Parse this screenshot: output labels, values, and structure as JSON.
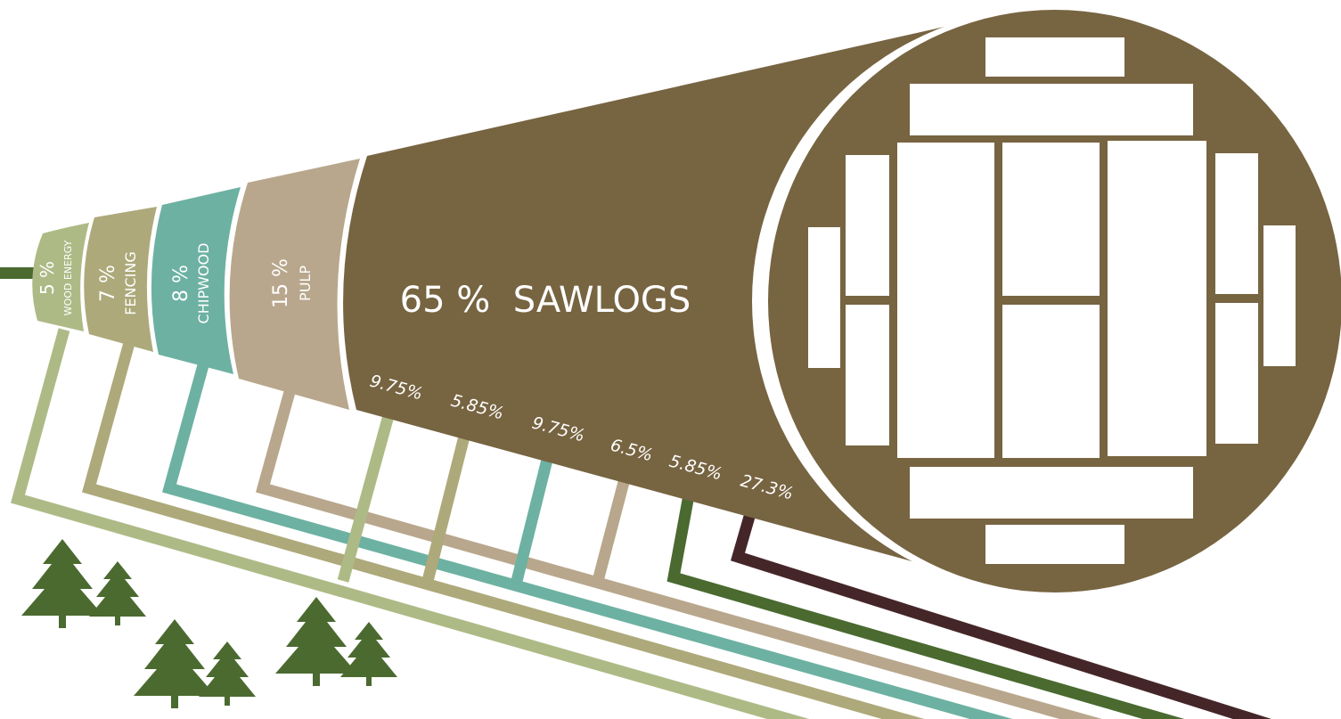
{
  "colors": {
    "wood_energy": "#aeba86",
    "fencing": "#ada97a",
    "chipwood": "#6db1a2",
    "pulp": "#b8a78c",
    "sawlogs": "#776441",
    "dark_green": "#4a6a30",
    "dark_brown": "#452628",
    "tree": "#4b6a30",
    "white": "#ffffff"
  },
  "segments": {
    "wood_energy": {
      "percent": "5 %",
      "label": "WOOD ENERGY"
    },
    "fencing": {
      "percent": "7 %",
      "label": "FENCING"
    },
    "chipwood": {
      "percent": "8 %",
      "label": "CHIPWOOD"
    },
    "pulp": {
      "percent": "15 %",
      "label": "PULP"
    },
    "sawlogs": {
      "title": "65 %  SAWLOGS"
    }
  },
  "sawlog_breakdown": [
    "9.75%",
    "5.85%",
    "9.75%",
    "6.5%",
    "5.85%",
    "27.3%"
  ],
  "icons": {
    "trees": "pine-tree-icon",
    "cross_section": "log-cross-section-icon"
  }
}
